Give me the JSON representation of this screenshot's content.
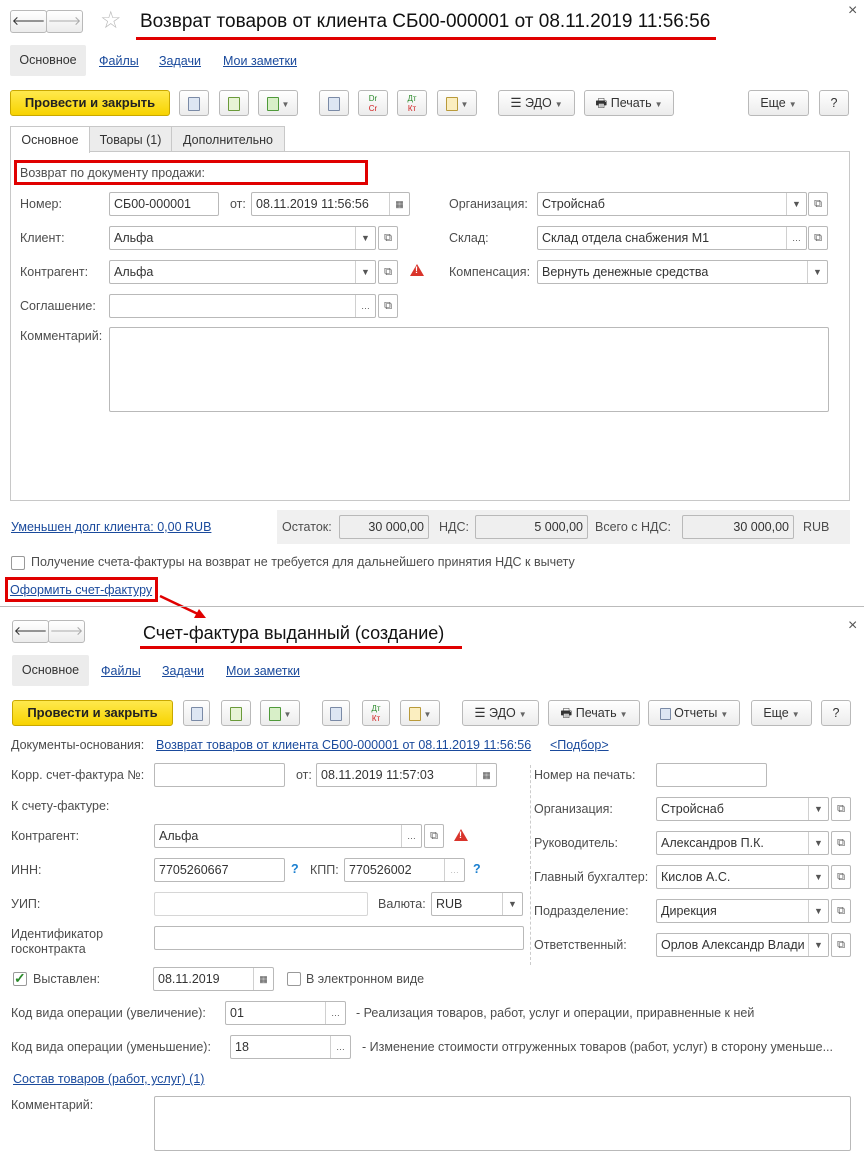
{
  "doc1": {
    "title": "Возврат товаров от клиента СБ00-000001 от 08.11.2019 11:56:56",
    "nav": [
      "Основное",
      "Файлы",
      "Задачи",
      "Мои заметки"
    ],
    "toolbar": {
      "post_close": "Провести и закрыть",
      "edo": "ЭДО",
      "print": "Печать",
      "more": "Еще",
      "help": "?",
      "dr": "Dr",
      "cr": "Cr",
      "dt": "Дт",
      "kt": "Кт"
    },
    "tabs": [
      "Основное",
      "Товары (1)",
      "Дополнительно"
    ],
    "return_by_sale": "Возврат по документу продажи:",
    "fields": {
      "number_label": "Номер:",
      "number": "СБ00-000001",
      "from_label": "от:",
      "date": "08.11.2019 11:56:56",
      "org_label": "Организация:",
      "org": "Стройснаб",
      "client_label": "Клиент:",
      "client": "Альфа",
      "warehouse_label": "Склад:",
      "warehouse": "Склад отдела снабжения М1",
      "counterparty_label": "Контрагент:",
      "counterparty": "Альфа",
      "compensation_label": "Компенсация:",
      "compensation": "Вернуть денежные средства",
      "agreement_label": "Соглашение:",
      "agreement": "",
      "comment_label": "Комментарий:",
      "comment": ""
    },
    "debt_link": "Уменьшен долг клиента: 0,00 RUB",
    "totals": {
      "rest_label": "Остаток:",
      "rest": "30 000,00",
      "vat_label": "НДС:",
      "vat": "5 000,00",
      "total_label": "Всего с НДС:",
      "total": "30 000,00",
      "currency": "RUB"
    },
    "invoice_not_required": "Получение счета-фактуры на возврат не требуется для дальнейшего принятия НДС к вычету",
    "invoice_not_required_checked": false,
    "create_invoice_link": "Оформить счет-фактуру"
  },
  "doc2": {
    "title": "Счет-фактура выданный (создание)",
    "nav": [
      "Основное",
      "Файлы",
      "Задачи",
      "Мои заметки"
    ],
    "toolbar": {
      "post_close": "Провести и закрыть",
      "edo": "ЭДО",
      "print": "Печать",
      "reports": "Отчеты",
      "more": "Еще",
      "help": "?",
      "dt": "Дт",
      "kt": "Кт"
    },
    "base_docs_label": "Документы-основания:",
    "base_doc_link": "Возврат товаров от клиента СБ00-000001 от 08.11.2019 11:56:56",
    "pick_link": "<Подбор>",
    "fields": {
      "corr_label": "Корр. счет-фактура №:",
      "corr": "",
      "from_label": "от:",
      "date": "08.11.2019 11:57:03",
      "print_number_label": "Номер на печать:",
      "print_number": "",
      "to_invoice_label": "К счету-фактуре:",
      "counterparty_label": "Контрагент:",
      "counterparty": "Альфа",
      "inn_label": "ИНН:",
      "inn": "7705260667",
      "kpp_label": "КПП:",
      "kpp": "770526002",
      "help_mark": "?",
      "uip_label": "УИП:",
      "uip": "",
      "currency_label": "Валюта:",
      "currency": "RUB",
      "contract_id_label": "Идентификатор госконтракта",
      "contract_id": "",
      "issued_label": "Выставлен:",
      "issued_checked": true,
      "issued_date": "08.11.2019",
      "electronic_label": "В электронном виде",
      "electronic_checked": false,
      "org_label": "Организация:",
      "org": "Стройснаб",
      "head_label": "Руководитель:",
      "head": "Александров П.К.",
      "accountant_label": "Главный бухгалтер:",
      "accountant": "Кислов А.С.",
      "division_label": "Подразделение:",
      "division": "Дирекция",
      "responsible_label": "Ответственный:",
      "responsible": "Орлов Александр Влади",
      "op_inc_label": "Код вида операции (увеличение):",
      "op_inc": "01",
      "op_inc_desc": "- Реализация товаров, работ, услуг и операции, приравненные к ней",
      "op_dec_label": "Код вида операции (уменьшение):",
      "op_dec": "18",
      "op_dec_desc": "- Изменение стоимости отгруженных товаров (работ, услуг) в сторону уменьше...",
      "goods_link": "Состав товаров (работ, услуг) (1)",
      "comment_label": "Комментарий:",
      "comment": ""
    }
  },
  "colors": {
    "accent_yellow": "#f7d300",
    "annotation_red": "#e00000",
    "link": "#1a4a9c",
    "warning": "#d9342b"
  }
}
